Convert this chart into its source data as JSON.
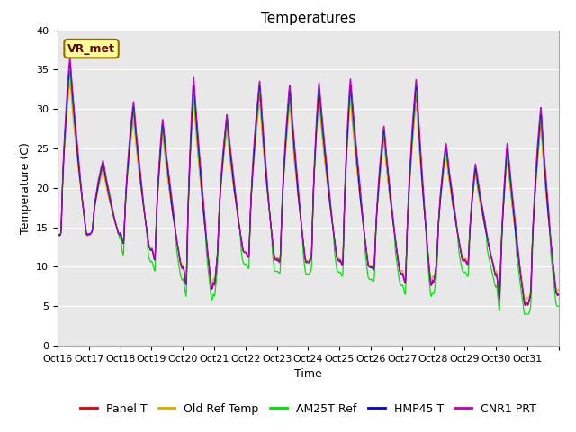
{
  "title": "Temperatures",
  "xlabel": "Time",
  "ylabel": "Temperature (C)",
  "ylim": [
    0,
    40
  ],
  "yticks": [
    0,
    5,
    10,
    15,
    20,
    25,
    30,
    35,
    40
  ],
  "x_labels": [
    "Oct 16",
    "Oct 17",
    "Oct 18",
    "Oct 19",
    "Oct 20",
    "Oct 21",
    "Oct 22",
    "Oct 23",
    "Oct 24",
    "Oct 25",
    "Oct 26",
    "Oct 27",
    "Oct 28",
    "Oct 29",
    "Oct 30",
    "Oct 31"
  ],
  "legend_labels": [
    "Panel T",
    "Old Ref Temp",
    "AM25T Ref",
    "HMP45 T",
    "CNR1 PRT"
  ],
  "line_colors": [
    "#dd0000",
    "#ddaa00",
    "#00dd00",
    "#0000dd",
    "#bb00bb"
  ],
  "bg_color": "#e8e8e8",
  "fig_bg_color": "#ffffff",
  "annotation_text": "VR_met",
  "title_fontsize": 11,
  "axis_fontsize": 9,
  "tick_fontsize": 8,
  "legend_fontsize": 9,
  "day_peaks": [
    35.5,
    23.0,
    30.0,
    28.0,
    33.0,
    28.5,
    32.5,
    32.0,
    32.5,
    33.0,
    27.0,
    32.5,
    25.0,
    22.5,
    25.0,
    29.0
  ],
  "day_troughs": [
    14.0,
    14.5,
    12.5,
    10.5,
    7.0,
    12.0,
    11.0,
    10.5,
    11.0,
    10.0,
    9.5,
    7.5,
    11.0,
    10.0,
    5.0,
    6.5
  ],
  "day_starts": [
    18.0,
    15.0,
    15.5,
    15.0,
    15.0,
    14.5,
    15.0,
    15.0,
    14.5,
    14.0,
    14.5,
    15.0,
    13.5,
    14.0,
    16.0,
    16.0
  ]
}
